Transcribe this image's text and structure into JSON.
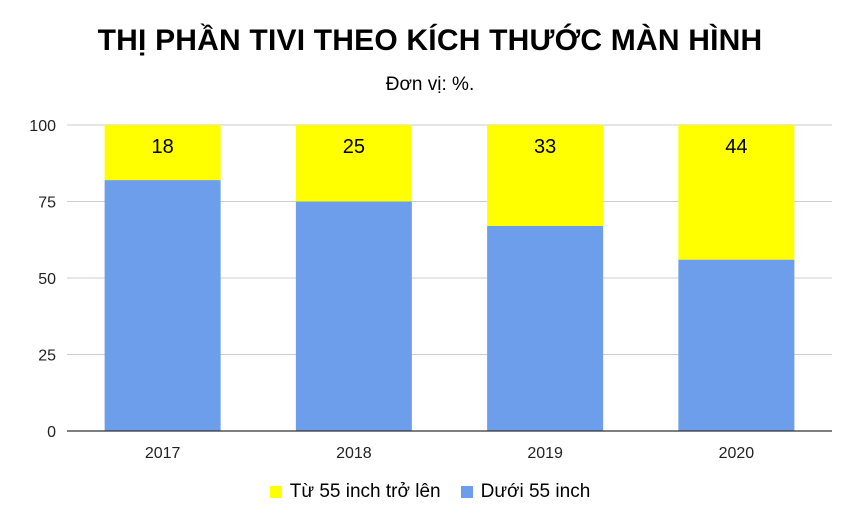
{
  "chart_data": {
    "type": "bar",
    "stacked": true,
    "title": "THỊ PHẦN TIVI THEO KÍCH THƯỚC MÀN HÌNH",
    "subtitle": "Đơn vị: %.",
    "categories": [
      "2017",
      "2018",
      "2019",
      "2020"
    ],
    "series": [
      {
        "name": "Dưới 55 inch",
        "values": [
          82,
          75,
          67,
          56
        ],
        "color": "#6d9eeb",
        "show_labels": false
      },
      {
        "name": "Từ 55 inch trở lên",
        "values": [
          18,
          25,
          33,
          44
        ],
        "color": "#ffff00",
        "show_labels": true
      }
    ],
    "ylim": [
      0,
      100
    ],
    "yticks": [
      "0",
      "25",
      "50",
      "75",
      "100"
    ],
    "grid": true,
    "legend_position": "bottom",
    "legend_order": [
      "Từ 55 inch trở lên",
      "Dưới 55 inch"
    ]
  }
}
